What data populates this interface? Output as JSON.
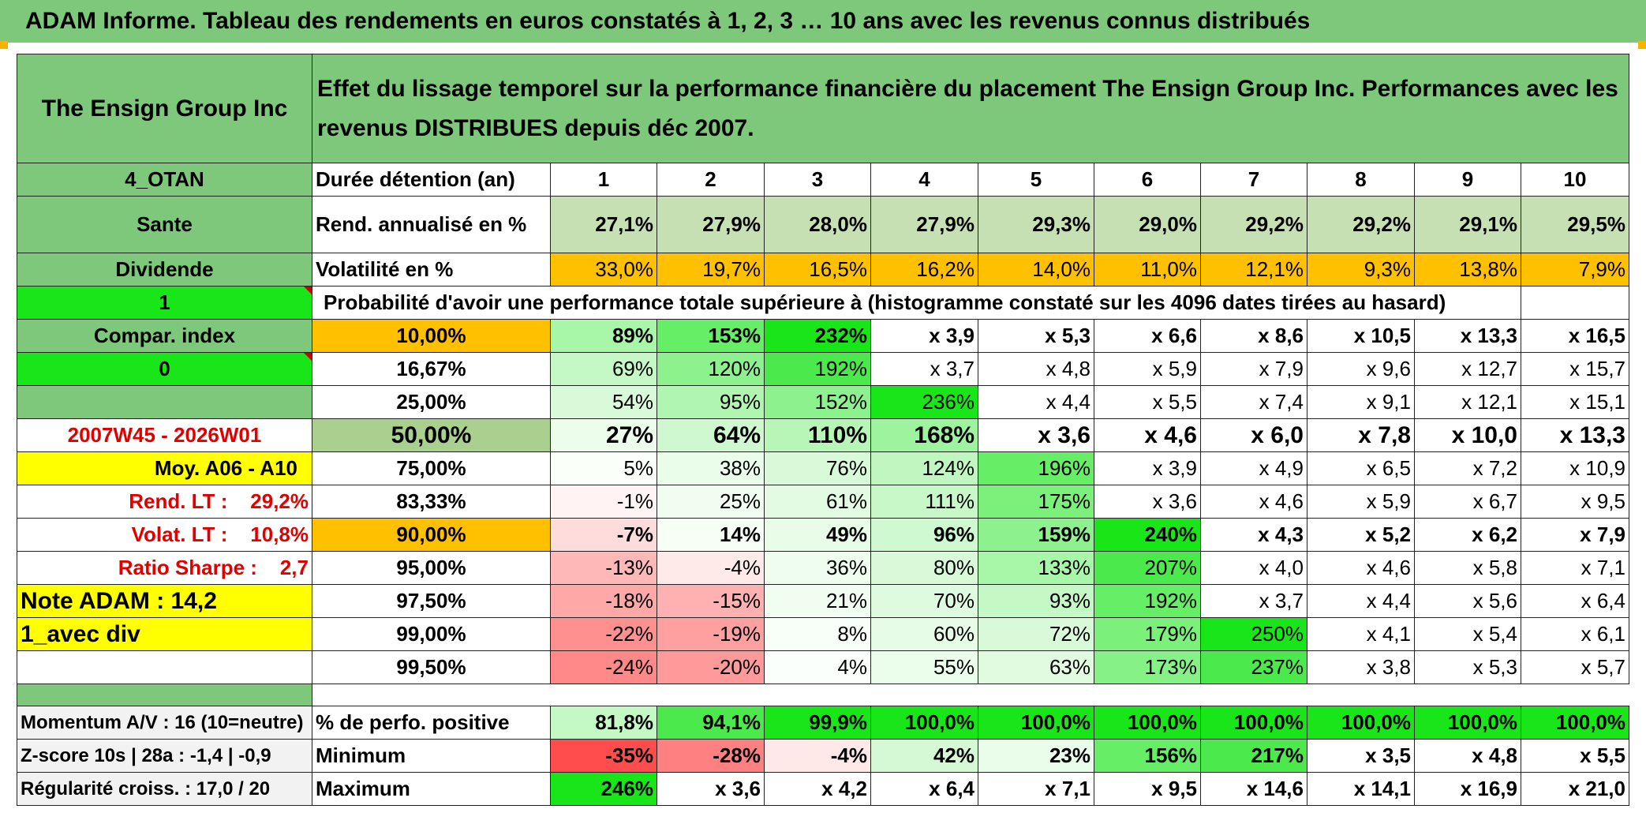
{
  "title": "ADAM Informe. Tableau des rendements en euros constatés à 1, 2, 3 … 10 ans avec les revenus connus distribués",
  "company": "The Ensign Group Inc",
  "description": "Effet du lissage temporel sur la performance financière du placement The Ensign Group Inc. Performances avec les revenus DISTRIBUES depuis déc 2007.",
  "left_labels": {
    "code": "4_OTAN",
    "sector": "Sante",
    "dividend": "Dividende",
    "one": "1",
    "compar_index": "Compar. index",
    "zero": "0",
    "period": "2007W45 - 2026W01",
    "moy": "Moy. A06 - A10",
    "rend_lt": "Rend. LT :    29,2%",
    "volat_lt": "Volat. LT :    10,8%",
    "sharpe": "Ratio Sharpe :    2,7",
    "note": "Note ADAM : 14,2",
    "avec_div": "1_avec div",
    "momentum": "Momentum A/V : 16 (10=neutre)",
    "zscore": "Z-score 10s | 28a : -1,4 | -0,9",
    "regularite": "Régularité croiss. : 17,0 / 20"
  },
  "duration_label": "Durée détention (an)",
  "years": [
    "1",
    "2",
    "3",
    "4",
    "5",
    "6",
    "7",
    "8",
    "9",
    "10"
  ],
  "rend_label": "Rend. annualisé en %",
  "rend": [
    "27,1%",
    "27,9%",
    "28,0%",
    "27,9%",
    "29,3%",
    "29,0%",
    "29,2%",
    "29,2%",
    "29,1%",
    "29,5%"
  ],
  "vol_label": "Volatilité en %",
  "vol": [
    "33,0%",
    "19,7%",
    "16,5%",
    "16,2%",
    "14,0%",
    "11,0%",
    "12,1%",
    "9,3%",
    "13,8%",
    "7,9%"
  ],
  "prob_label": "Probabilité d'avoir une performance totale supérieure à (histogramme constaté sur les 4096 dates tirées au hasard)",
  "quantiles": [
    {
      "p": "10,00%",
      "v": [
        "89%",
        "153%",
        "232%",
        "x 3,9",
        "x 5,3",
        "x 6,6",
        "x 8,6",
        "x 10,5",
        "x 13,3",
        "x 16,5"
      ]
    },
    {
      "p": "16,67%",
      "v": [
        "69%",
        "120%",
        "192%",
        "x 3,7",
        "x 4,8",
        "x 5,9",
        "x 7,9",
        "x 9,6",
        "x 12,7",
        "x 15,7"
      ]
    },
    {
      "p": "25,00%",
      "v": [
        "54%",
        "95%",
        "152%",
        "236%",
        "x 4,4",
        "x 5,5",
        "x 7,4",
        "x 9,1",
        "x 12,1",
        "x 15,1"
      ]
    },
    {
      "p": "50,00%",
      "v": [
        "27%",
        "64%",
        "110%",
        "168%",
        "x 3,6",
        "x 4,6",
        "x 6,0",
        "x 7,8",
        "x 10,0",
        "x 13,3"
      ]
    },
    {
      "p": "75,00%",
      "v": [
        "5%",
        "38%",
        "76%",
        "124%",
        "196%",
        "x 3,9",
        "x 4,9",
        "x 6,5",
        "x 7,2",
        "x 10,9"
      ]
    },
    {
      "p": "83,33%",
      "v": [
        "-1%",
        "25%",
        "61%",
        "111%",
        "175%",
        "x 3,6",
        "x 4,6",
        "x 5,9",
        "x 6,7",
        "x 9,5"
      ]
    },
    {
      "p": "90,00%",
      "v": [
        "-7%",
        "14%",
        "49%",
        "96%",
        "159%",
        "240%",
        "x 4,3",
        "x 5,2",
        "x 6,2",
        "x 7,9"
      ]
    },
    {
      "p": "95,00%",
      "v": [
        "-13%",
        "-4%",
        "36%",
        "80%",
        "133%",
        "207%",
        "x 4,0",
        "x 4,6",
        "x 5,8",
        "x 7,1"
      ]
    },
    {
      "p": "97,50%",
      "v": [
        "-18%",
        "-15%",
        "21%",
        "70%",
        "93%",
        "192%",
        "x 3,7",
        "x 4,4",
        "x 5,6",
        "x 6,4"
      ]
    },
    {
      "p": "99,00%",
      "v": [
        "-22%",
        "-19%",
        "8%",
        "60%",
        "72%",
        "179%",
        "250%",
        "x 4,1",
        "x 5,4",
        "x 6,1"
      ]
    },
    {
      "p": "99,50%",
      "v": [
        "-24%",
        "-20%",
        "4%",
        "55%",
        "63%",
        "173%",
        "237%",
        "x 3,8",
        "x 5,3",
        "x 5,7"
      ]
    }
  ],
  "stats": [
    {
      "label": "% de perfo. positive",
      "v": [
        "81,8%",
        "94,1%",
        "99,9%",
        "100,0%",
        "100,0%",
        "100,0%",
        "100,0%",
        "100,0%",
        "100,0%",
        "100,0%"
      ]
    },
    {
      "label": "Minimum",
      "v": [
        "-35%",
        "-28%",
        "-4%",
        "42%",
        "23%",
        "156%",
        "217%",
        "x 3,5",
        "x 4,8",
        "x 5,5"
      ]
    },
    {
      "label": "Maximum",
      "v": [
        "246%",
        "x 3,6",
        "x 4,2",
        "x 6,4",
        "x 7,1",
        "x 9,5",
        "x 14,6",
        "x 14,1",
        "x 16,9",
        "x 21,0"
      ]
    }
  ],
  "colors": {
    "header_green": "#7ec87b",
    "bright_green": "#19e619",
    "orange": "#ffc000",
    "yellow": "#ffff00",
    "red_text": "#e00000"
  },
  "cell_colors": {
    "rend": [
      "#c6e0b4",
      "#c6e0b4",
      "#c6e0b4",
      "#c6e0b4",
      "#c6e0b4",
      "#c6e0b4",
      "#c6e0b4",
      "#c6e0b4",
      "#c6e0b4",
      "#c6e0b4"
    ],
    "vol": [
      "#ffc000",
      "#ffc000",
      "#ffc000",
      "#ffc000",
      "#ffc000",
      "#ffc000",
      "#ffc000",
      "#ffc000",
      "#ffc000",
      "#ffc000"
    ],
    "quantiles": [
      [
        "#a8f7a8",
        "#66ee66",
        "#19e619",
        "#fff",
        "#fff",
        "#fff",
        "#fff",
        "#fff",
        "#fff",
        "#fff"
      ],
      [
        "#c4f8c4",
        "#8df28d",
        "#4ce94c",
        "#fff",
        "#fff",
        "#fff",
        "#fff",
        "#fff",
        "#fff",
        "#fff"
      ],
      [
        "#d8fad8",
        "#b0f5b0",
        "#8df28d",
        "#19e619",
        "#fff",
        "#fff",
        "#fff",
        "#fff",
        "#fff",
        "#fff"
      ],
      [
        "#ecfdec",
        "#d0f8d0",
        "#b8f6b8",
        "#9ef49e",
        "#fff",
        "#fff",
        "#fff",
        "#fff",
        "#fff",
        "#fff"
      ],
      [
        "#fafffa",
        "#eafcea",
        "#d8fad8",
        "#c0f7c0",
        "#66ee66",
        "#fff",
        "#fff",
        "#fff",
        "#fff",
        "#fff"
      ],
      [
        "#fff3f3",
        "#f0fdf0",
        "#e2fbe2",
        "#c8f8c8",
        "#7bf07b",
        "#fff",
        "#fff",
        "#fff",
        "#fff",
        "#fff"
      ],
      [
        "#ffdcdc",
        "#f6fef6",
        "#e8fce8",
        "#cff9cf",
        "#8df28d",
        "#19e619",
        "#fff",
        "#fff",
        "#fff",
        "#fff"
      ],
      [
        "#ffb8b8",
        "#ffeaea",
        "#eefdee",
        "#d8fad8",
        "#a8f7a8",
        "#4ce94c",
        "#fff",
        "#fff",
        "#fff",
        "#fff"
      ],
      [
        "#ffa8a8",
        "#ffb0b0",
        "#f2fdf2",
        "#dffbdf",
        "#c4f8c4",
        "#66ee66",
        "#fff",
        "#fff",
        "#fff",
        "#fff"
      ],
      [
        "#ff9090",
        "#ffa0a0",
        "#f8fef8",
        "#e6fce6",
        "#d8fad8",
        "#7bf07b",
        "#19e619",
        "#fff",
        "#fff",
        "#fff"
      ],
      [
        "#ff8888",
        "#ff9a9a",
        "#fbfffb",
        "#ebfdeb",
        "#e0fbe0",
        "#86f186",
        "#4ce94c",
        "#fff",
        "#fff",
        "#fff"
      ]
    ],
    "stats": [
      [
        "#c4f8c4",
        "#4ce94c",
        "#19e619",
        "#19e619",
        "#19e619",
        "#19e619",
        "#19e619",
        "#19e619",
        "#19e619",
        "#19e619"
      ],
      [
        "#ff4d4d",
        "#ff8080",
        "#ffe8e8",
        "#d4f9d4",
        "#eafcea",
        "#66ee66",
        "#4ce94c",
        "#fff",
        "#fff",
        "#fff"
      ],
      [
        "#19e619",
        "#fff",
        "#fff",
        "#fff",
        "#fff",
        "#fff",
        "#fff",
        "#fff",
        "#fff",
        "#fff"
      ]
    ]
  }
}
